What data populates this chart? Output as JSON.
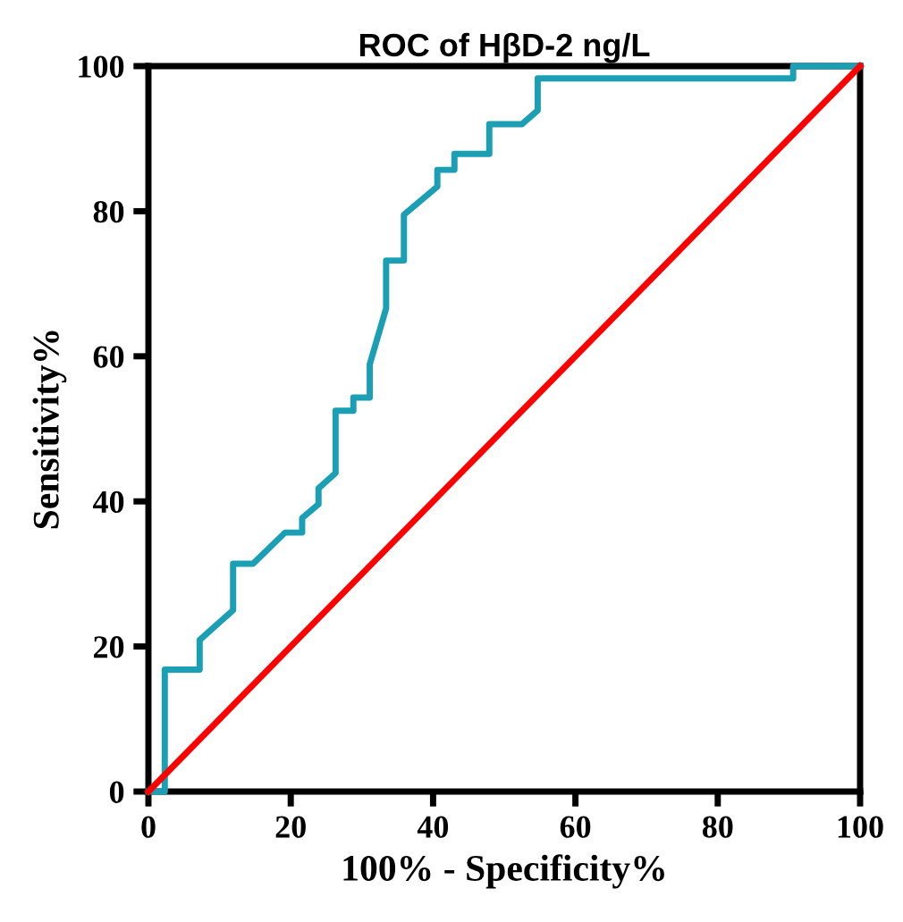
{
  "chart_data": {
    "type": "line",
    "title": "ROC of HβD-2 ng/L",
    "xlabel": "100% - Specificity%",
    "ylabel": "Sensitivity%",
    "series": [
      {
        "color": "#1a9fb5",
        "x": [
          0,
          2.3,
          2.3,
          7.2,
          7.2,
          11.9,
          11.9,
          14.7,
          19.2,
          21.6,
          21.6,
          23.9,
          23.9,
          26.3,
          26.3,
          28.8,
          28.8,
          31.1,
          31.1,
          33.4,
          33.4,
          35.9,
          35.9,
          40.6,
          40.6,
          43,
          43,
          47.9,
          47.9,
          52.5,
          54.7,
          54.7,
          90.6,
          90.6,
          100
        ],
        "values": [
          0,
          0,
          16.8,
          16.8,
          20.9,
          25,
          31.4,
          31.4,
          35.7,
          35.7,
          37.7,
          39.6,
          41.8,
          43.9,
          52.5,
          52.5,
          54.3,
          54.3,
          58.9,
          66.6,
          73.2,
          73.2,
          79.5,
          83.4,
          85.7,
          85.7,
          87.9,
          87.9,
          92,
          92,
          93.9,
          98.3,
          98.3,
          100,
          100
        ]
      },
      {
        "color": "#ff0000",
        "x": [
          0,
          100
        ],
        "values": [
          0,
          100
        ]
      }
    ],
    "xlim": [
      0,
      100
    ],
    "ylim": [
      0,
      100
    ],
    "xticks": [
      0,
      20,
      40,
      60,
      80,
      100
    ],
    "yticks": [
      0,
      20,
      40,
      60,
      80,
      100
    ],
    "grid": false,
    "legend": false,
    "marker": "none",
    "line_style": "solid"
  }
}
